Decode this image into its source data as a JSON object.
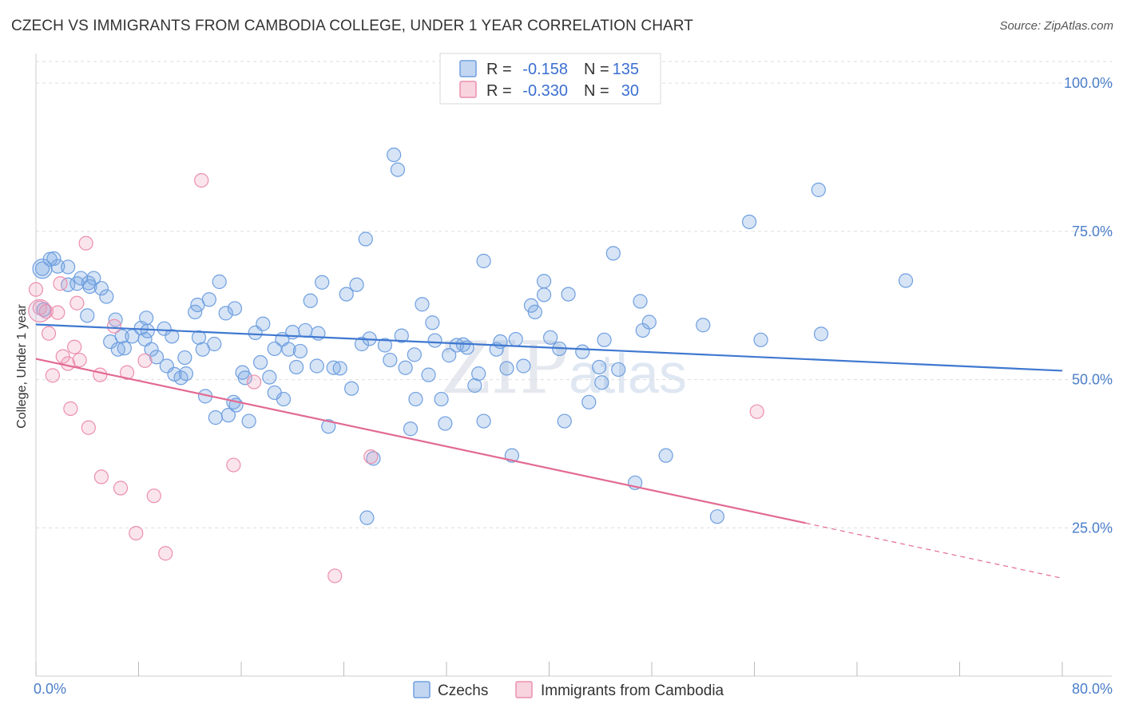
{
  "title": "CZECH VS IMMIGRANTS FROM CAMBODIA COLLEGE, UNDER 1 YEAR CORRELATION CHART",
  "source": "Source: ZipAtlas.com",
  "colors": {
    "czech": "#6f9fe0",
    "czech_fill": "rgba(120,165,225,0.30)",
    "czech_line": "#3f78d0",
    "cambodia": "#ec8fae",
    "cambodia_fill": "rgba(240,160,185,0.28)",
    "cambodia_line": "#e26a93",
    "axis_text": "#4a7ec9"
  },
  "legend": {
    "rows": [
      {
        "r_label": "R =",
        "r_value": "-0.158",
        "n_label": "N =",
        "n_value": "135"
      },
      {
        "r_label": "R =",
        "r_value": "-0.330",
        "n_label": "N =",
        "n_value": "30"
      }
    ]
  },
  "watermark": {
    "zip": "ZIP",
    "atlas": "atlas"
  },
  "chart_data": {
    "type": "scatter",
    "title": "CZECH VS IMMIGRANTS FROM CAMBODIA COLLEGE, UNDER 1 YEAR CORRELATION CHART",
    "xlabel": "",
    "ylabel": "College, Under 1 year",
    "xlim": [
      0,
      80
    ],
    "ylim": [
      0,
      105
    ],
    "x_tick_labels": [
      "0.0%",
      "80.0%"
    ],
    "y_ticks": [
      25,
      50,
      75,
      100
    ],
    "y_tick_labels": [
      "25.0%",
      "50.0%",
      "75.0%",
      "100.0%"
    ],
    "grid": true,
    "series": [
      {
        "name": "Czechs",
        "trend": {
          "x0": 0,
          "y0": 59.3,
          "x1": 80,
          "y1": 51.5
        },
        "points": [
          [
            0.5,
            68.7
          ],
          [
            0.6,
            61.8
          ],
          [
            1.1,
            70.3
          ],
          [
            1.4,
            70.4
          ],
          [
            1.7,
            69.1
          ],
          [
            2.5,
            69.0
          ],
          [
            2.5,
            66.0
          ],
          [
            3.2,
            66.2
          ],
          [
            3.5,
            67.1
          ],
          [
            4.5,
            67.1
          ],
          [
            4.2,
            65.7
          ],
          [
            4.1,
            66.3
          ],
          [
            5.1,
            65.4
          ],
          [
            5.5,
            64.0
          ],
          [
            4.0,
            60.8
          ],
          [
            6.2,
            60.1
          ],
          [
            5.8,
            56.4
          ],
          [
            6.7,
            57.3
          ],
          [
            6.4,
            55.1
          ],
          [
            6.9,
            55.3
          ],
          [
            7.5,
            57.3
          ],
          [
            8.2,
            58.7
          ],
          [
            8.6,
            60.4
          ],
          [
            8.7,
            58.2
          ],
          [
            9.0,
            55.1
          ],
          [
            9.4,
            53.8
          ],
          [
            10.0,
            58.6
          ],
          [
            10.2,
            52.3
          ],
          [
            10.6,
            57.3
          ],
          [
            10.8,
            50.9
          ],
          [
            11.3,
            50.3
          ],
          [
            11.6,
            53.7
          ],
          [
            11.7,
            51.0
          ],
          [
            12.4,
            61.4
          ],
          [
            12.6,
            62.6
          ],
          [
            12.7,
            57.1
          ],
          [
            13.0,
            55.1
          ],
          [
            13.5,
            63.5
          ],
          [
            13.9,
            56.0
          ],
          [
            14.3,
            66.5
          ],
          [
            14.8,
            61.2
          ],
          [
            15.5,
            62.0
          ],
          [
            14.0,
            43.6
          ],
          [
            15.0,
            44.0
          ],
          [
            15.4,
            46.2
          ],
          [
            15.6,
            45.7
          ],
          [
            16.1,
            51.2
          ],
          [
            16.3,
            50.3
          ],
          [
            16.6,
            43.0
          ],
          [
            17.1,
            57.9
          ],
          [
            17.5,
            52.9
          ],
          [
            17.7,
            59.4
          ],
          [
            18.2,
            50.4
          ],
          [
            18.6,
            55.2
          ],
          [
            18.6,
            47.8
          ],
          [
            19.2,
            56.8
          ],
          [
            19.3,
            46.7
          ],
          [
            19.7,
            55.1
          ],
          [
            20.0,
            58.0
          ],
          [
            20.3,
            52.1
          ],
          [
            20.6,
            54.8
          ],
          [
            21.0,
            58.3
          ],
          [
            21.4,
            63.3
          ],
          [
            22.0,
            57.8
          ],
          [
            22.3,
            66.4
          ],
          [
            21.9,
            52.3
          ],
          [
            22.8,
            42.1
          ],
          [
            23.2,
            52.0
          ],
          [
            23.7,
            51.9
          ],
          [
            24.2,
            64.4
          ],
          [
            24.6,
            48.5
          ],
          [
            25.0,
            66.0
          ],
          [
            25.4,
            56.0
          ],
          [
            25.7,
            73.7
          ],
          [
            26.0,
            56.9
          ],
          [
            26.3,
            36.7
          ],
          [
            27.2,
            55.8
          ],
          [
            27.6,
            53.3
          ],
          [
            27.9,
            87.9
          ],
          [
            28.2,
            85.4
          ],
          [
            28.5,
            57.4
          ],
          [
            28.8,
            52.0
          ],
          [
            29.2,
            41.7
          ],
          [
            29.6,
            46.7
          ],
          [
            30.1,
            62.7
          ],
          [
            30.6,
            50.8
          ],
          [
            30.9,
            59.6
          ],
          [
            31.1,
            56.6
          ],
          [
            31.6,
            46.7
          ],
          [
            31.9,
            42.6
          ],
          [
            32.2,
            54.1
          ],
          [
            32.8,
            55.8
          ],
          [
            33.3,
            55.9
          ],
          [
            33.6,
            55.4
          ],
          [
            34.2,
            49.0
          ],
          [
            34.5,
            51.0
          ],
          [
            34.9,
            70.0
          ],
          [
            34.9,
            43.0
          ],
          [
            35.9,
            55.1
          ],
          [
            36.2,
            56.4
          ],
          [
            36.7,
            51.9
          ],
          [
            37.1,
            37.2
          ],
          [
            37.4,
            56.8
          ],
          [
            38.0,
            52.3
          ],
          [
            38.6,
            62.5
          ],
          [
            38.9,
            61.4
          ],
          [
            39.6,
            64.3
          ],
          [
            39.6,
            66.6
          ],
          [
            40.1,
            57.1
          ],
          [
            40.8,
            55.2
          ],
          [
            41.2,
            43.0
          ],
          [
            41.5,
            64.4
          ],
          [
            42.6,
            54.7
          ],
          [
            43.1,
            46.2
          ],
          [
            43.9,
            52.1
          ],
          [
            44.1,
            49.5
          ],
          [
            44.3,
            56.7
          ],
          [
            45.0,
            71.3
          ],
          [
            45.4,
            51.7
          ],
          [
            46.7,
            32.6
          ],
          [
            47.1,
            63.2
          ],
          [
            47.3,
            58.3
          ],
          [
            47.8,
            59.7
          ],
          [
            49.1,
            37.2
          ],
          [
            52.0,
            59.2
          ],
          [
            53.1,
            26.9
          ],
          [
            55.6,
            76.6
          ],
          [
            56.5,
            56.7
          ],
          [
            61.0,
            82.0
          ],
          [
            61.2,
            57.7
          ],
          [
            67.8,
            66.7
          ],
          [
            29.5,
            54.2
          ],
          [
            13.2,
            47.2
          ],
          [
            8.5,
            56.8
          ],
          [
            25.8,
            26.7
          ]
        ]
      },
      {
        "name": "Immigrants from Cambodia",
        "trend": {
          "x0": 0,
          "y0": 53.5,
          "x1": 60,
          "y1": 25.8,
          "dash_x1": 80,
          "dash_y1": 16.5
        },
        "points": [
          [
            0.0,
            65.2
          ],
          [
            0.3,
            62.1
          ],
          [
            0.8,
            61.5
          ],
          [
            1.0,
            57.8
          ],
          [
            1.3,
            50.7
          ],
          [
            1.7,
            61.3
          ],
          [
            1.9,
            66.2
          ],
          [
            2.1,
            53.9
          ],
          [
            2.5,
            52.7
          ],
          [
            2.7,
            45.1
          ],
          [
            3.0,
            55.5
          ],
          [
            3.2,
            62.9
          ],
          [
            3.4,
            53.3
          ],
          [
            3.9,
            73.0
          ],
          [
            4.1,
            41.9
          ],
          [
            5.0,
            50.8
          ],
          [
            5.1,
            33.6
          ],
          [
            6.1,
            59.0
          ],
          [
            6.6,
            31.7
          ],
          [
            7.1,
            51.2
          ],
          [
            7.8,
            24.1
          ],
          [
            8.5,
            53.2
          ],
          [
            9.2,
            30.4
          ],
          [
            10.1,
            20.7
          ],
          [
            12.9,
            83.6
          ],
          [
            15.4,
            35.6
          ],
          [
            17.0,
            49.6
          ],
          [
            23.3,
            16.9
          ],
          [
            26.1,
            37.0
          ],
          [
            56.2,
            44.6
          ]
        ]
      }
    ],
    "legend_labels": [
      "Czechs",
      "Immigrants from Cambodia"
    ]
  }
}
